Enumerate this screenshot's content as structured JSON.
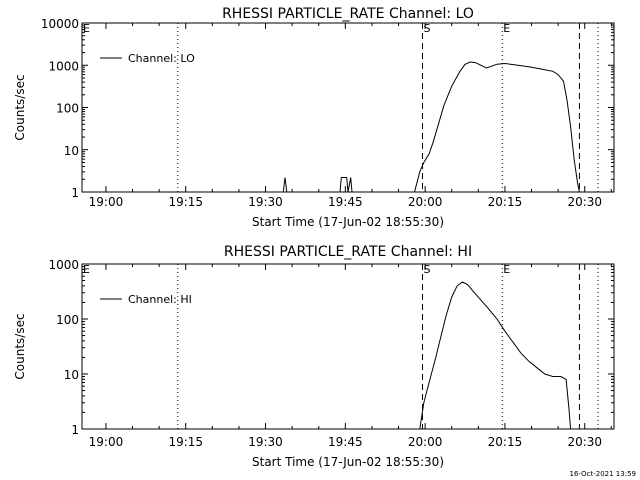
{
  "footer_timestamp": "16-Oct-2021 13:59",
  "chart_data": [
    {
      "type": "line",
      "title": "RHESSI PARTICLE_RATE Channel: LO",
      "xlabel": "Start Time (17-Jun-02 18:55:30)",
      "ylabel": "Counts/sec",
      "y_scale": "log",
      "xlim": [
        "18:55:30",
        "20:35:30"
      ],
      "ylim": [
        1,
        10000
      ],
      "x_ticks": [
        "19:00",
        "19:15",
        "19:30",
        "19:45",
        "20:00",
        "20:15",
        "20:30"
      ],
      "y_ticks": [
        "1",
        "10",
        "100",
        "1000",
        "10000"
      ],
      "legend": {
        "position": "top-left",
        "label": "Channel: LO"
      },
      "markers": [
        {
          "label": "E",
          "time": "18:55:30",
          "style": "dotted"
        },
        {
          "label": "",
          "time": "19:13:30",
          "style": "dotted"
        },
        {
          "label": "S",
          "time": "19:59:30",
          "style": "dashed"
        },
        {
          "label": "E",
          "time": "20:14:30",
          "style": "dotted"
        },
        {
          "label": "",
          "time": "20:29:00",
          "style": "dashed"
        },
        {
          "label": "",
          "time": "20:32:30",
          "style": "dotted"
        }
      ],
      "series": [
        {
          "name": "Channel: LO",
          "points": [
            [
              "19:33:20",
              1
            ],
            [
              "19:33:40",
              2.2
            ],
            [
              "19:34:00",
              1
            ],
            [
              "19:44:00",
              1
            ],
            [
              "19:44:15",
              2.2
            ],
            [
              "19:45:15",
              2.2
            ],
            [
              "19:45:30",
              1
            ],
            [
              "19:46:00",
              2.2
            ],
            [
              "19:46:15",
              1
            ],
            [
              "19:58:00",
              1
            ],
            [
              "19:59:00",
              3
            ],
            [
              "19:59:45",
              5
            ],
            [
              "20:00:45",
              8
            ],
            [
              "20:01:30",
              15
            ],
            [
              "20:02:30",
              40
            ],
            [
              "20:03:30",
              110
            ],
            [
              "20:05:00",
              320
            ],
            [
              "20:06:30",
              700
            ],
            [
              "20:07:30",
              1050
            ],
            [
              "20:08:30",
              1200
            ],
            [
              "20:09:30",
              1150
            ],
            [
              "20:10:30",
              1000
            ],
            [
              "20:11:30",
              860
            ],
            [
              "20:12:30",
              950
            ],
            [
              "20:13:30",
              1060
            ],
            [
              "20:15:00",
              1100
            ],
            [
              "20:16:00",
              1060
            ],
            [
              "20:18:00",
              980
            ],
            [
              "20:20:00",
              900
            ],
            [
              "20:22:00",
              800
            ],
            [
              "20:24:00",
              720
            ],
            [
              "20:25:00",
              600
            ],
            [
              "20:26:00",
              420
            ],
            [
              "20:26:40",
              150
            ],
            [
              "20:27:20",
              35
            ],
            [
              "20:28:00",
              6
            ],
            [
              "20:28:40",
              1.6
            ],
            [
              "20:29:00",
              1
            ]
          ]
        }
      ]
    },
    {
      "type": "line",
      "title": "RHESSI PARTICLE_RATE Channel: HI",
      "xlabel": "Start Time (17-Jun-02 18:55:30)",
      "ylabel": "Counts/sec",
      "y_scale": "log",
      "xlim": [
        "18:55:30",
        "20:35:30"
      ],
      "ylim": [
        1,
        1000
      ],
      "x_ticks": [
        "19:00",
        "19:15",
        "19:30",
        "19:45",
        "20:00",
        "20:15",
        "20:30"
      ],
      "y_ticks": [
        "1",
        "10",
        "100",
        "1000"
      ],
      "legend": {
        "position": "top-left",
        "label": "Channel: HI"
      },
      "markers": [
        {
          "label": "E",
          "time": "18:55:30",
          "style": "dotted"
        },
        {
          "label": "",
          "time": "19:13:30",
          "style": "dotted"
        },
        {
          "label": "S",
          "time": "19:59:30",
          "style": "dashed"
        },
        {
          "label": "E",
          "time": "20:14:30",
          "style": "dotted"
        },
        {
          "label": "",
          "time": "20:29:00",
          "style": "dashed"
        },
        {
          "label": "",
          "time": "20:32:30",
          "style": "dotted"
        }
      ],
      "series": [
        {
          "name": "Channel: HI",
          "points": [
            [
              "19:59:00",
              1
            ],
            [
              "19:59:45",
              3
            ],
            [
              "20:00:45",
              7
            ],
            [
              "20:02:00",
              20
            ],
            [
              "20:03:00",
              50
            ],
            [
              "20:04:00",
              120
            ],
            [
              "20:05:00",
              250
            ],
            [
              "20:06:00",
              400
            ],
            [
              "20:07:00",
              470
            ],
            [
              "20:08:00",
              420
            ],
            [
              "20:09:00",
              320
            ],
            [
              "20:10:30",
              220
            ],
            [
              "20:12:00",
              150
            ],
            [
              "20:13:30",
              100
            ],
            [
              "20:15:00",
              60
            ],
            [
              "20:16:30",
              38
            ],
            [
              "20:18:00",
              24
            ],
            [
              "20:19:30",
              17
            ],
            [
              "20:21:00",
              13
            ],
            [
              "20:22:30",
              10
            ],
            [
              "20:24:00",
              9
            ],
            [
              "20:25:30",
              9
            ],
            [
              "20:26:30",
              8
            ],
            [
              "20:27:00",
              2.5
            ],
            [
              "20:27:20",
              1
            ]
          ]
        }
      ]
    }
  ]
}
